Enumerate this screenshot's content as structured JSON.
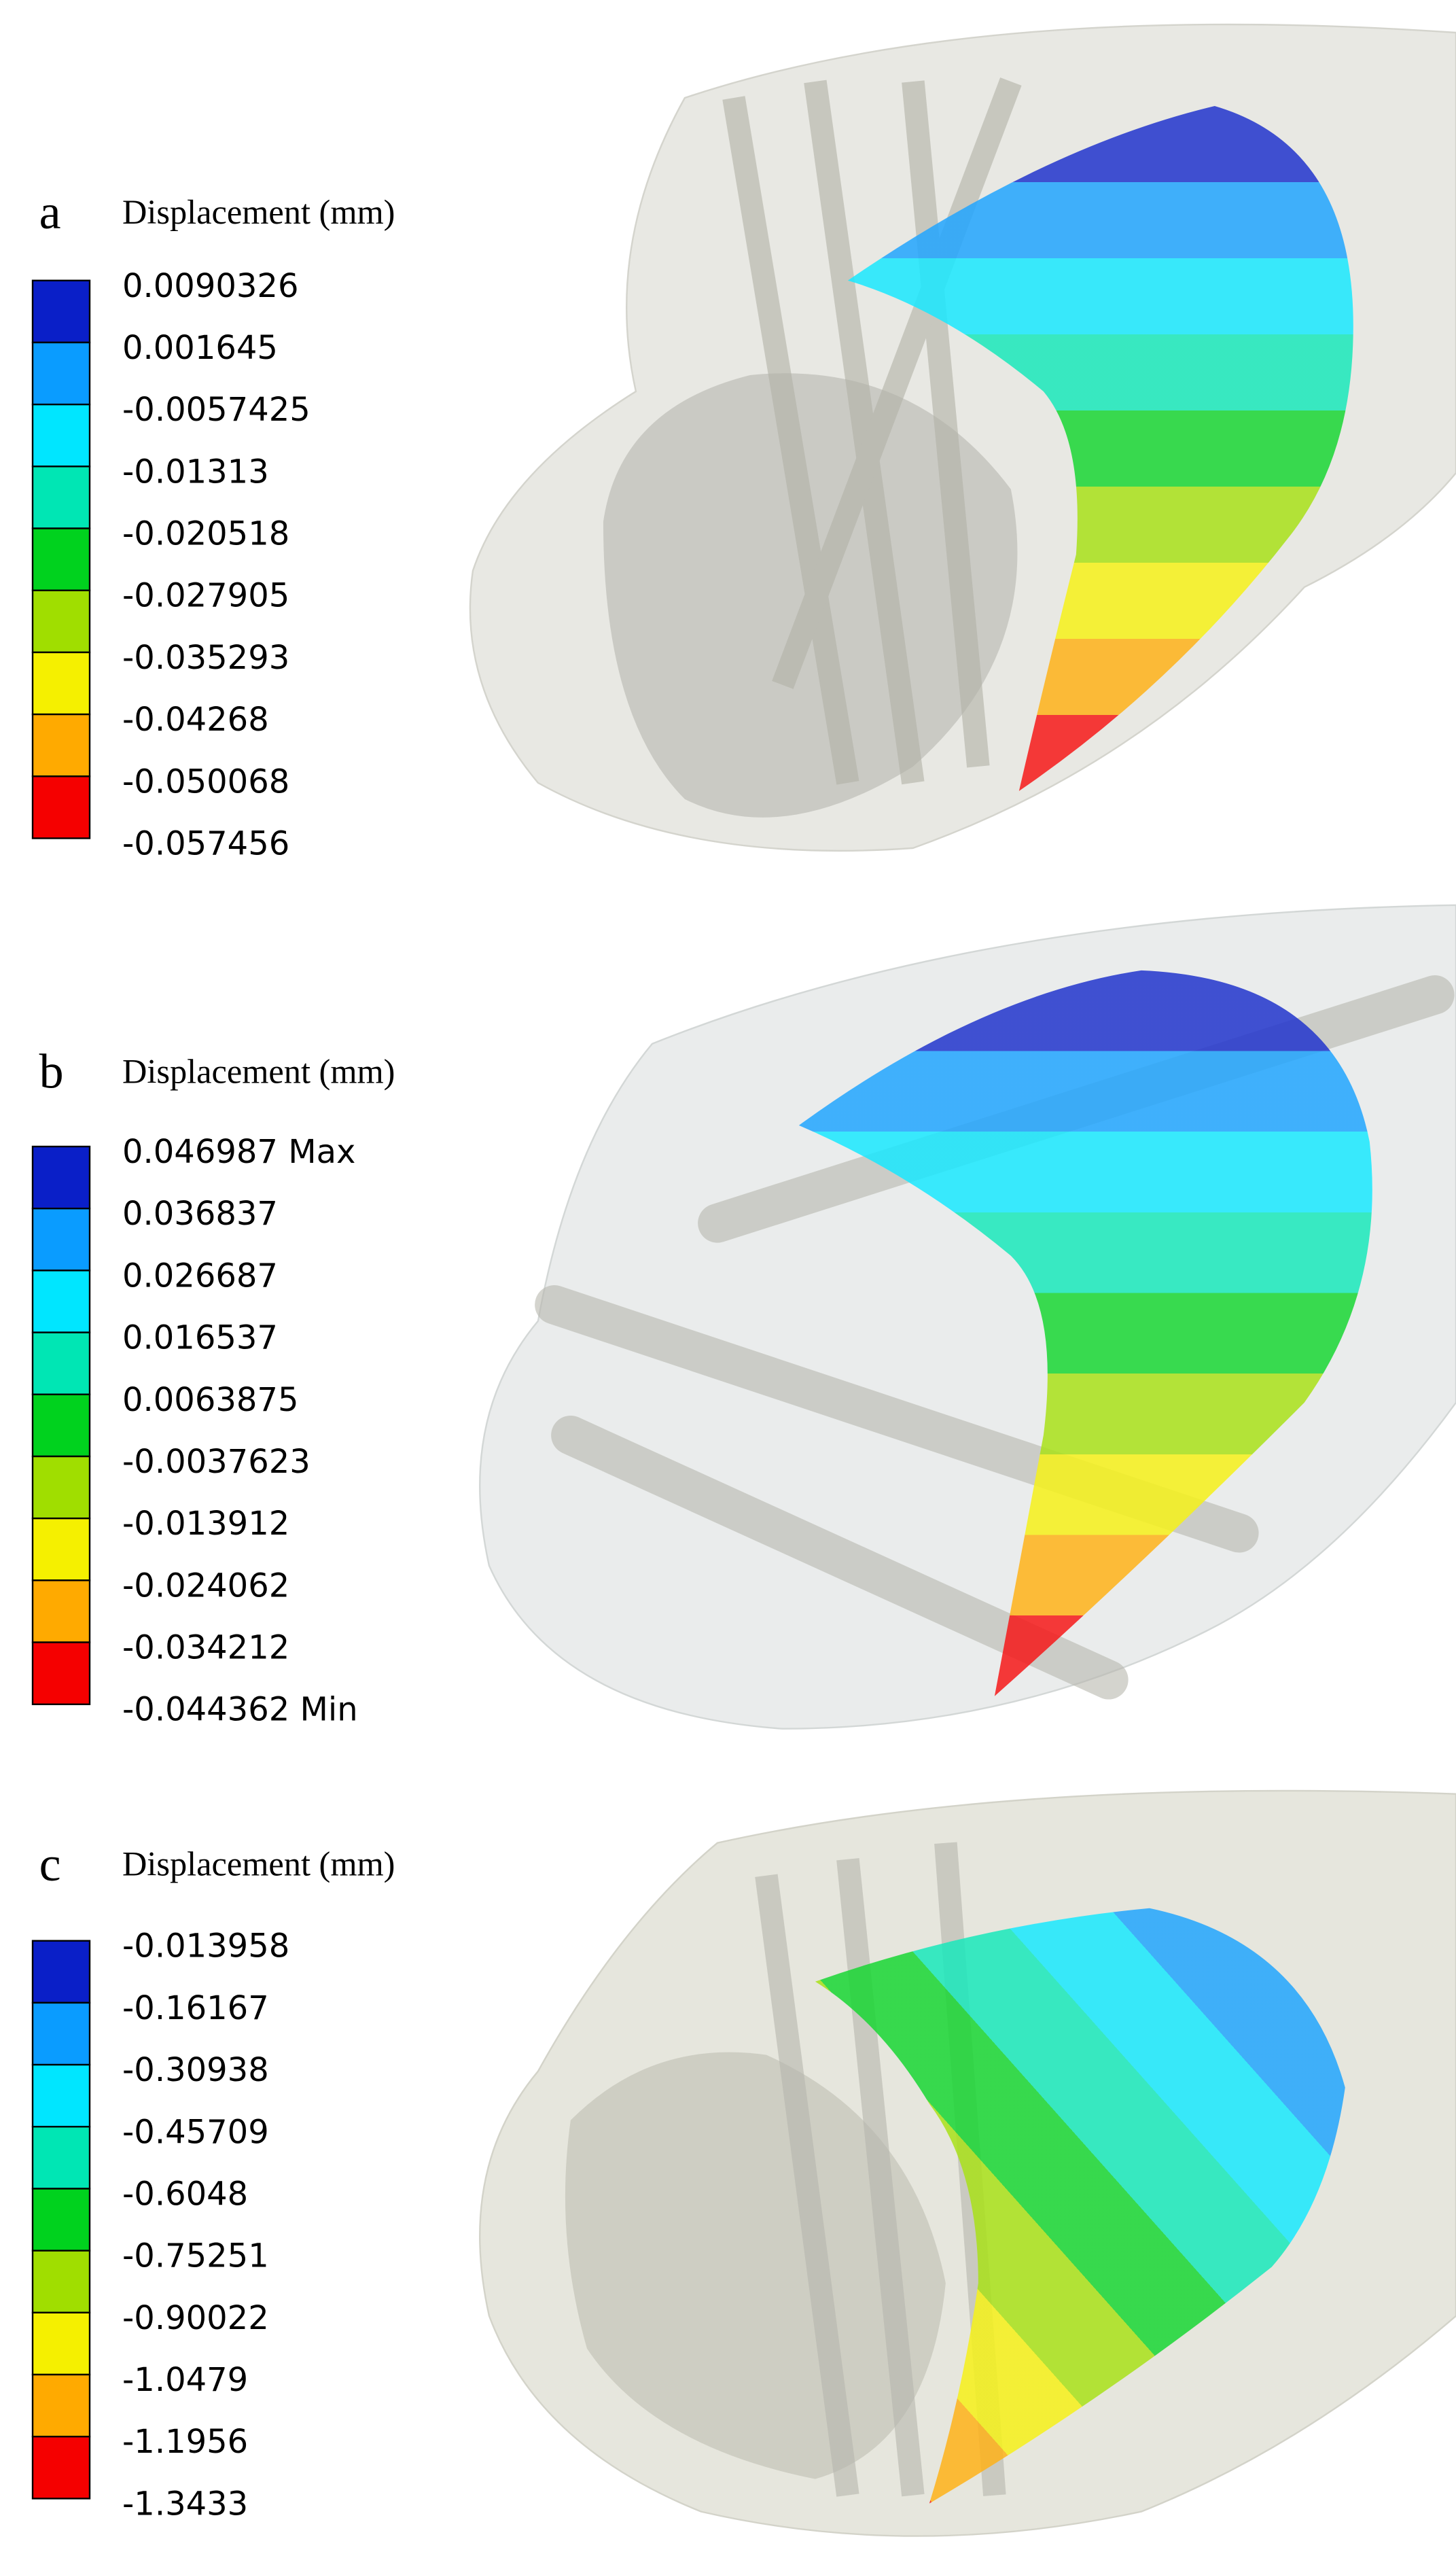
{
  "colors": [
    "#0a1fc8",
    "#0a9cff",
    "#00e6ff",
    "#00e6b4",
    "#00d21e",
    "#a0de00",
    "#f5f000",
    "#ffaa00",
    "#f50000"
  ],
  "panels": [
    {
      "label": "a",
      "legend_title": "Displacement (mm)",
      "entries": [
        "0.0090326",
        "0.001645",
        "-0.0057425",
        "-0.01313",
        "-0.020518",
        "-0.027905",
        "-0.035293",
        "-0.04268",
        "-0.050068",
        "-0.057456"
      ]
    },
    {
      "label": "b",
      "legend_title": "Displacement (mm)",
      "entries": [
        "0.046987 Max",
        "0.036837",
        "0.026687",
        "0.016537",
        "0.0063875",
        "-0.0037623",
        "-0.013912",
        "-0.024062",
        "-0.034212",
        "-0.044362 Min"
      ]
    },
    {
      "label": "c",
      "legend_title": "Displacement (mm)",
      "entries": [
        "-0.013958",
        "-0.16167",
        "-0.30938",
        "-0.45709",
        "-0.6048",
        "-0.75251",
        "-0.90022",
        "-1.0479",
        "-1.1956",
        "-1.3433"
      ]
    }
  ]
}
